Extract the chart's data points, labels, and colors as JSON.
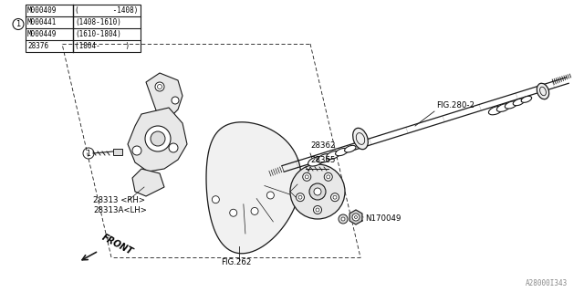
{
  "bg_color": "#ffffff",
  "line_color": "#1a1a1a",
  "fig_width": 6.4,
  "fig_height": 3.2,
  "dpi": 100,
  "table_data": [
    [
      "M000409",
      "(        -1408)"
    ],
    [
      "M000441",
      "(1408-1610)"
    ],
    [
      "M000449",
      "(1610-1804)"
    ],
    [
      "28376",
      "(1804-      )"
    ]
  ],
  "labels": {
    "FIG262": "FIG.262",
    "FIG2802": "FIG.280-2",
    "28313RH": "28313 <RH>",
    "28313ALH": "28313A<LH>",
    "28362": "28362",
    "28365": "28365",
    "N170049": "N170049",
    "FRONT": "FRONT"
  },
  "watermark": "A28000I343"
}
